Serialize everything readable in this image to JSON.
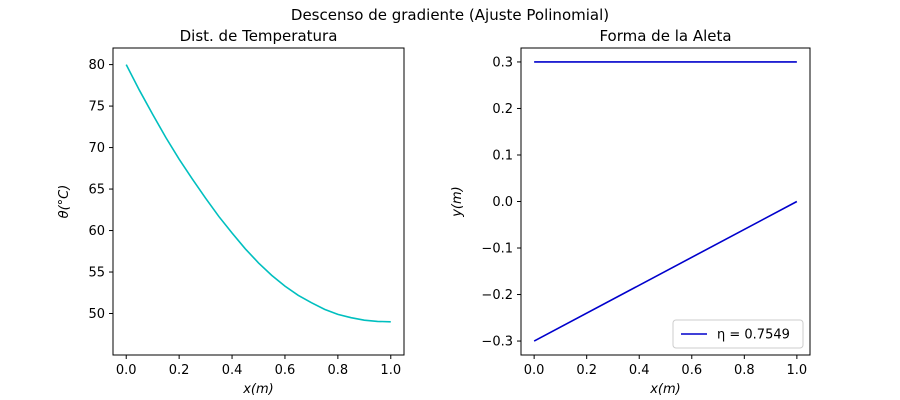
{
  "figure": {
    "suptitle": "Descenso de gradiente (Ajuste Polinomial)"
  },
  "chart_data": [
    {
      "type": "line",
      "title": "Dist. de Temperatura",
      "xlabel": "x(m)",
      "ylabel": "θ(°C)",
      "xlim": [
        -0.05,
        1.05
      ],
      "ylim": [
        45,
        82
      ],
      "xticks": [
        0.0,
        0.2,
        0.4,
        0.6,
        0.8,
        1.0
      ],
      "xtick_labels": [
        "0.0",
        "0.2",
        "0.4",
        "0.6",
        "0.8",
        "1.0"
      ],
      "yticks": [
        50,
        55,
        60,
        65,
        70,
        75,
        80
      ],
      "ytick_labels": [
        "50",
        "55",
        "60",
        "65",
        "70",
        "75",
        "80"
      ],
      "grid": false,
      "series": [
        {
          "color": "#00bfbf",
          "x": [
            0.0,
            0.05,
            0.1,
            0.15,
            0.2,
            0.25,
            0.3,
            0.35,
            0.4,
            0.45,
            0.5,
            0.55,
            0.6,
            0.65,
            0.7,
            0.75,
            0.8,
            0.85,
            0.9,
            0.95,
            1.0
          ],
          "y": [
            80.0,
            76.9,
            74.0,
            71.2,
            68.6,
            66.2,
            63.9,
            61.7,
            59.7,
            57.8,
            56.1,
            54.6,
            53.3,
            52.2,
            51.3,
            50.5,
            49.9,
            49.5,
            49.2,
            49.05,
            49.0
          ]
        }
      ]
    },
    {
      "type": "line",
      "title": "Forma de la Aleta",
      "xlabel": "x(m)",
      "ylabel": "y(m)",
      "xlim": [
        -0.05,
        1.05
      ],
      "ylim": [
        -0.33,
        0.33
      ],
      "xticks": [
        0.0,
        0.2,
        0.4,
        0.6,
        0.8,
        1.0
      ],
      "xtick_labels": [
        "0.0",
        "0.2",
        "0.4",
        "0.6",
        "0.8",
        "1.0"
      ],
      "yticks": [
        -0.3,
        -0.2,
        -0.1,
        0.0,
        0.1,
        0.2,
        0.3
      ],
      "ytick_labels": [
        "−0.3",
        "−0.2",
        "−0.1",
        "0.0",
        "0.1",
        "0.2",
        "0.3"
      ],
      "grid": false,
      "legend": {
        "position": "lower-right",
        "entries": [
          {
            "label": "η = 0.7549",
            "color": "#0000cc"
          }
        ]
      },
      "series": [
        {
          "color": "#0000cc",
          "x": [
            0.0,
            1.0
          ],
          "y": [
            0.3,
            0.3
          ]
        },
        {
          "color": "#0000cc",
          "x": [
            0.0,
            1.0
          ],
          "y": [
            -0.3,
            0.0
          ]
        }
      ]
    }
  ]
}
